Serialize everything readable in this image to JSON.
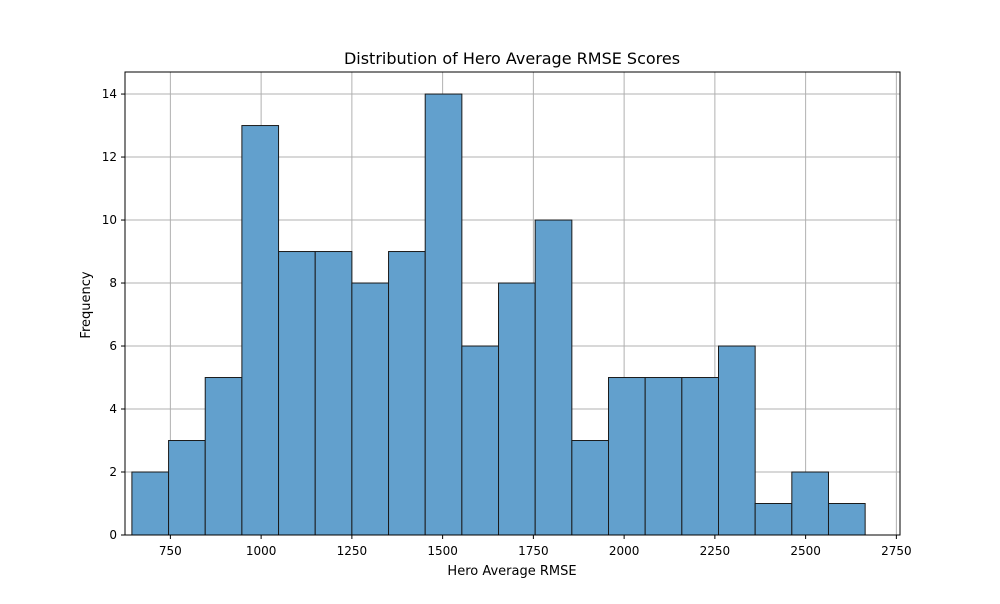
{
  "chart_data": {
    "type": "bar",
    "title": "Distribution of Hero Average RMSE Scores",
    "xlabel": "Hero Average RMSE",
    "ylabel": "Frequency",
    "xlim": [
      625,
      2760
    ],
    "ylim": [
      0,
      14.7
    ],
    "grid": true,
    "x_ticks": [
      750,
      1000,
      1250,
      1500,
      1750,
      2000,
      2250,
      2500,
      2750
    ],
    "y_ticks": [
      0,
      2,
      4,
      6,
      8,
      10,
      12,
      14
    ],
    "bin_edges": [
      644,
      745,
      846,
      947,
      1048,
      1149,
      1250,
      1351,
      1452,
      1553,
      1654,
      1755,
      1856,
      1957,
      2058,
      2159,
      2260,
      2361,
      2462,
      2563,
      2664
    ],
    "counts": [
      2,
      3,
      5,
      13,
      9,
      9,
      8,
      9,
      14,
      6,
      8,
      10,
      3,
      5,
      5,
      5,
      6,
      1,
      2,
      1
    ],
    "bar_color": "#62a0cd",
    "edge_color": "#1a1a1a",
    "grid_color": "#b0b0b0"
  }
}
